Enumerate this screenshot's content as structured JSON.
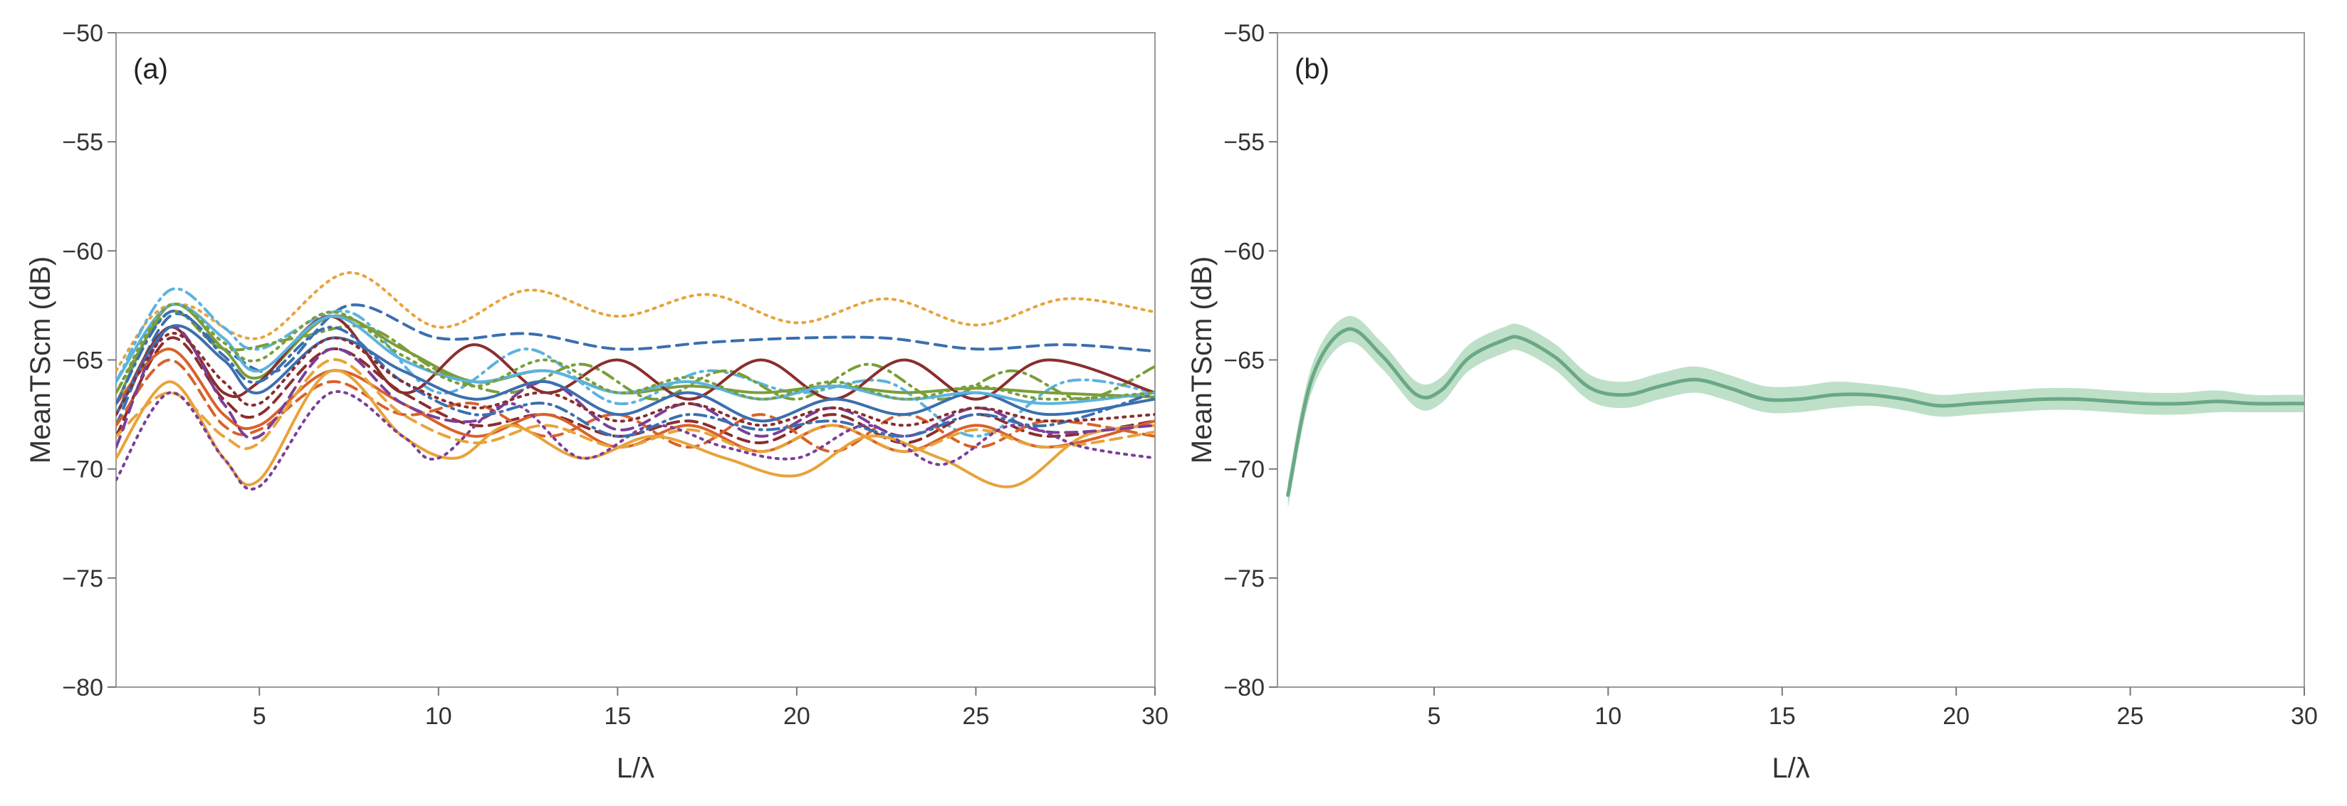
{
  "chart_data": [
    {
      "panel_label": "(a)",
      "type": "line",
      "xlabel": "L/λ",
      "ylabel": "MeanTScm (dB)",
      "xlim": [
        1,
        30
      ],
      "ylim": [
        -80,
        -50
      ],
      "xticks": [
        5,
        10,
        15,
        20,
        25,
        30
      ],
      "yticks": [
        -50,
        -55,
        -60,
        -65,
        -70,
        -75,
        -80
      ],
      "legend": "none",
      "series": [
        {
          "color": "#E8A33A",
          "dash": "dotted",
          "x": [
            1,
            2,
            3,
            5,
            7.5,
            10,
            12.5,
            15,
            17.5,
            20,
            22.5,
            25,
            27.5,
            30
          ],
          "values": [
            -65.5,
            -63.0,
            -62.5,
            -64.0,
            -61.0,
            -63.5,
            -61.8,
            -63.0,
            -62.0,
            -63.3,
            -62.2,
            -63.4,
            -62.2,
            -62.8
          ]
        },
        {
          "color": "#3B6FB0",
          "dash": "dashed",
          "x": [
            1,
            2.5,
            4,
            5.5,
            7.5,
            10,
            12.5,
            15,
            17.5,
            20,
            22.5,
            25,
            27.5,
            30
          ],
          "values": [
            -68.0,
            -63.0,
            -64.5,
            -65.5,
            -62.5,
            -64.0,
            -63.8,
            -64.5,
            -64.2,
            -64.0,
            -64.0,
            -64.5,
            -64.3,
            -64.6
          ]
        },
        {
          "color": "#5BB3DE",
          "dash": "dashdot",
          "x": [
            1,
            2.5,
            4,
            5,
            7.5,
            10,
            12.5,
            15,
            17.5,
            20,
            22.5,
            25,
            27.5,
            30
          ],
          "values": [
            -66.0,
            -61.8,
            -63.5,
            -64.5,
            -62.8,
            -66.5,
            -64.5,
            -67.0,
            -65.5,
            -66.5,
            -66.0,
            -68.5,
            -66.0,
            -66.5
          ]
        },
        {
          "color": "#7A9E3A",
          "dash": "solid",
          "x": [
            1,
            2.5,
            4,
            5,
            7,
            9,
            11,
            13,
            15,
            17,
            19,
            21,
            23,
            25,
            27,
            30
          ],
          "values": [
            -67.0,
            -62.5,
            -64.5,
            -65.8,
            -63.0,
            -64.5,
            -66.0,
            -65.5,
            -66.5,
            -66.2,
            -66.5,
            -66.2,
            -66.5,
            -66.3,
            -66.5,
            -66.7
          ]
        },
        {
          "color": "#7A9E3A",
          "dash": "dashdot",
          "x": [
            1,
            2.5,
            4,
            6,
            8,
            10,
            12,
            14,
            16,
            18,
            20,
            22,
            24,
            26,
            28,
            30
          ],
          "values": [
            -66.5,
            -62.8,
            -64.5,
            -64.0,
            -63.5,
            -65.5,
            -66.5,
            -65.2,
            -66.8,
            -65.5,
            -66.8,
            -65.2,
            -66.8,
            -65.5,
            -66.8,
            -65.3
          ]
        },
        {
          "color": "#8B2E2E",
          "dash": "solid",
          "x": [
            1,
            2.5,
            4,
            5,
            7,
            9,
            11,
            13,
            15,
            17,
            19,
            21,
            23,
            25,
            27,
            30
          ],
          "values": [
            -67.5,
            -63.5,
            -66.5,
            -66.0,
            -63.0,
            -66.5,
            -64.3,
            -66.5,
            -65.0,
            -66.8,
            -65.0,
            -66.8,
            -65.0,
            -66.8,
            -65.0,
            -66.5
          ]
        },
        {
          "color": "#8B2E2E",
          "dash": "dashed",
          "x": [
            1,
            2.5,
            4,
            5,
            7,
            9,
            11,
            13,
            15,
            17,
            19,
            21,
            23,
            25,
            27,
            30
          ],
          "values": [
            -68.5,
            -64.0,
            -66.8,
            -67.5,
            -64.5,
            -66.5,
            -68.0,
            -67.5,
            -68.5,
            -67.8,
            -68.8,
            -67.5,
            -68.8,
            -67.5,
            -68.5,
            -67.8
          ]
        },
        {
          "color": "#D9622B",
          "dash": "solid",
          "x": [
            1,
            2.5,
            4,
            5,
            7,
            9,
            11,
            13,
            15,
            17,
            19,
            21,
            23,
            25,
            27,
            30
          ],
          "values": [
            -67.0,
            -64.5,
            -67.5,
            -68.0,
            -65.5,
            -67.0,
            -68.5,
            -67.5,
            -69.0,
            -68.0,
            -69.2,
            -68.0,
            -69.2,
            -68.0,
            -69.0,
            -67.8
          ]
        },
        {
          "color": "#D9622B",
          "dash": "dashed",
          "x": [
            1,
            2.5,
            4,
            5,
            7,
            9,
            11,
            13,
            15,
            17,
            19,
            21,
            23,
            25,
            27,
            30
          ],
          "values": [
            -68.0,
            -65.0,
            -68.0,
            -68.2,
            -66.0,
            -67.5,
            -67.0,
            -68.5,
            -67.5,
            -69.0,
            -67.5,
            -69.2,
            -67.5,
            -69.0,
            -67.8,
            -68.5
          ]
        },
        {
          "color": "#E8A33A",
          "dash": "solid",
          "x": [
            1,
            2.5,
            4,
            5,
            7,
            9,
            10.5,
            12,
            14,
            16,
            18,
            20,
            22,
            24,
            26,
            28,
            30
          ],
          "values": [
            -69.5,
            -66.0,
            -69.5,
            -70.5,
            -65.5,
            -68.5,
            -69.5,
            -68.0,
            -69.5,
            -68.5,
            -69.5,
            -70.3,
            -68.5,
            -69.5,
            -70.8,
            -68.5,
            -68.0
          ]
        },
        {
          "color": "#E8A33A",
          "dash": "dashed",
          "x": [
            1,
            2.5,
            4,
            5,
            7,
            9,
            11,
            13,
            15,
            17,
            19,
            21,
            23,
            25,
            27,
            30
          ],
          "values": [
            -68.5,
            -66.5,
            -68.5,
            -68.8,
            -65.0,
            -67.5,
            -68.8,
            -68.0,
            -69.0,
            -68.2,
            -69.2,
            -68.0,
            -69.2,
            -68.2,
            -69.0,
            -68.3
          ]
        },
        {
          "color": "#7B3F98",
          "dash": "dotted",
          "x": [
            1,
            2.5,
            4,
            5,
            7,
            9,
            10,
            12,
            14,
            16,
            18,
            20,
            22,
            24,
            26,
            28,
            30
          ],
          "values": [
            -70.5,
            -66.5,
            -69.5,
            -70.8,
            -66.5,
            -68.5,
            -69.5,
            -67.0,
            -69.5,
            -68.0,
            -69.0,
            -69.5,
            -68.0,
            -69.8,
            -68.0,
            -69.0,
            -69.5
          ]
        },
        {
          "color": "#7B3F98",
          "dash": "dashed",
          "x": [
            1,
            2.5,
            4,
            5,
            7,
            9,
            11,
            13,
            15,
            17,
            19,
            21,
            23,
            25,
            27,
            30
          ],
          "values": [
            -69.0,
            -63.5,
            -67.0,
            -68.5,
            -64.5,
            -67.0,
            -67.8,
            -66.0,
            -68.2,
            -67.0,
            -68.5,
            -67.2,
            -68.5,
            -67.2,
            -68.3,
            -68.0
          ]
        },
        {
          "color": "#3B6FB0",
          "dash": "solid",
          "x": [
            1,
            2.5,
            4,
            5,
            7,
            9,
            11,
            13,
            15,
            17,
            19,
            21,
            23,
            25,
            27,
            30
          ],
          "values": [
            -67.5,
            -63.5,
            -65.0,
            -66.5,
            -64.0,
            -65.5,
            -66.8,
            -66.0,
            -67.5,
            -66.5,
            -67.8,
            -66.8,
            -67.5,
            -66.5,
            -67.5,
            -66.8
          ]
        },
        {
          "color": "#3B6FB0",
          "dash": "dashdot",
          "x": [
            1,
            2.5,
            4,
            5,
            7,
            9,
            11,
            13,
            15,
            17,
            19,
            21,
            23,
            25,
            27,
            30
          ],
          "values": [
            -67.0,
            -62.8,
            -64.8,
            -66.0,
            -63.5,
            -66.0,
            -67.5,
            -67.0,
            -68.5,
            -67.5,
            -68.2,
            -67.8,
            -68.5,
            -67.5,
            -68.0,
            -66.5
          ]
        },
        {
          "color": "#5BB3DE",
          "dash": "solid",
          "x": [
            1,
            2.5,
            4,
            5,
            7,
            9,
            11,
            13,
            15,
            17,
            19,
            21,
            23,
            25,
            27,
            30
          ],
          "values": [
            -66.0,
            -62.5,
            -64.0,
            -65.5,
            -63.0,
            -65.0,
            -66.0,
            -65.5,
            -66.5,
            -66.0,
            -66.8,
            -66.2,
            -66.8,
            -66.5,
            -67.0,
            -66.5
          ]
        },
        {
          "color": "#7A9E3A",
          "dash": "dotted",
          "x": [
            1,
            2.5,
            4,
            5,
            7,
            9,
            11,
            13,
            15,
            17,
            19,
            21,
            23,
            25,
            27,
            30
          ],
          "values": [
            -66.5,
            -62.5,
            -64.2,
            -65.0,
            -62.8,
            -64.8,
            -66.2,
            -65.0,
            -66.5,
            -65.8,
            -66.8,
            -66.0,
            -66.8,
            -66.2,
            -66.8,
            -66.5
          ]
        },
        {
          "color": "#8B2E2E",
          "dash": "dotted",
          "x": [
            1,
            2.5,
            4,
            5,
            7,
            9,
            11,
            13,
            15,
            17,
            19,
            21,
            23,
            25,
            27,
            30
          ],
          "values": [
            -67.5,
            -63.8,
            -66.0,
            -67.0,
            -64.0,
            -66.0,
            -67.2,
            -66.5,
            -67.8,
            -67.0,
            -68.0,
            -67.2,
            -68.0,
            -67.2,
            -67.8,
            -67.5
          ]
        }
      ]
    },
    {
      "panel_label": "(b)",
      "type": "line",
      "xlabel": "L/λ",
      "ylabel": "MeanTScm (dB)",
      "xlim": [
        0.5,
        30
      ],
      "ylim": [
        -80,
        -50
      ],
      "xticks": [
        5,
        10,
        15,
        20,
        25,
        30
      ],
      "yticks": [
        -50,
        -55,
        -60,
        -65,
        -70,
        -75,
        -80
      ],
      "legend": "none",
      "series": [
        {
          "color": "#6AA886",
          "band_color": "#A8D5B6",
          "x": [
            0.8,
            1.5,
            2.5,
            3.5,
            4.5,
            5.2,
            6,
            7,
            7.5,
            8.5,
            9.5,
            10.5,
            11.5,
            12.5,
            13.5,
            14.5,
            15.5,
            16.5,
            17.5,
            18.5,
            19.5,
            20.5,
            21.5,
            22.5,
            23.5,
            24.5,
            25.5,
            26.5,
            27.5,
            28.5,
            29.5,
            30
          ],
          "values": [
            -71.2,
            -65.8,
            -63.6,
            -64.8,
            -66.6,
            -66.4,
            -64.9,
            -64.1,
            -64.0,
            -64.9,
            -66.3,
            -66.6,
            -66.2,
            -65.9,
            -66.3,
            -66.8,
            -66.8,
            -66.6,
            -66.6,
            -66.8,
            -67.1,
            -67.0,
            -66.9,
            -66.8,
            -66.8,
            -66.9,
            -67.0,
            -67.0,
            -66.9,
            -67.0,
            -67.0,
            -67.0
          ],
          "band_halfwidth": [
            0.6,
            0.6,
            0.6,
            0.6,
            0.6,
            0.6,
            0.6,
            0.6,
            0.6,
            0.6,
            0.6,
            0.6,
            0.6,
            0.6,
            0.6,
            0.6,
            0.6,
            0.6,
            0.5,
            0.5,
            0.5,
            0.5,
            0.5,
            0.5,
            0.5,
            0.5,
            0.5,
            0.5,
            0.5,
            0.4,
            0.4,
            0.4
          ]
        }
      ]
    }
  ]
}
